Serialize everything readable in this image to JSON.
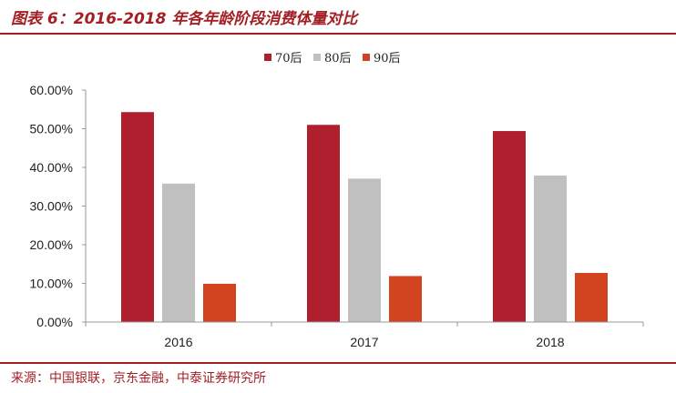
{
  "header": {
    "title": "图表 6：2016-2018 年各年龄阶段消费体量对比"
  },
  "footer": {
    "source": "来源：中国银联，京东金融，中泰证券研究所"
  },
  "colors": {
    "accent": "#a31f24",
    "series_70": "#b01f2e",
    "series_80": "#c0c0c0",
    "series_90": "#d2441f"
  },
  "chart_data": {
    "type": "bar",
    "categories": [
      "2016",
      "2017",
      "2018"
    ],
    "series": [
      {
        "name": "70后",
        "values": [
          54.3,
          51.0,
          49.4
        ],
        "color": "#b01f2e"
      },
      {
        "name": "80后",
        "values": [
          35.8,
          37.1,
          37.9
        ],
        "color": "#c0c0c0"
      },
      {
        "name": "90后",
        "values": [
          9.9,
          11.9,
          12.7
        ],
        "color": "#d2441f"
      }
    ],
    "ylim": [
      0,
      60
    ],
    "yticks": [
      "0.00%",
      "10.00%",
      "20.00%",
      "30.00%",
      "40.00%",
      "50.00%",
      "60.00%"
    ],
    "legend_position": "top-center",
    "grid": false
  }
}
